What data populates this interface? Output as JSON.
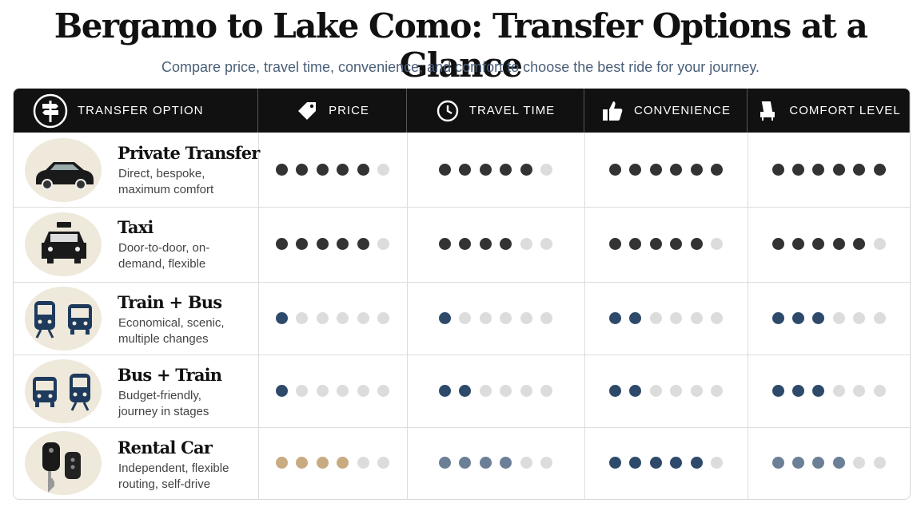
{
  "header": {
    "title": "Bergamo to Lake Como: Transfer Options at a Glance",
    "subtitle": "Compare price, travel time, convenience, and comfort to choose the best ride for your journey."
  },
  "table": {
    "columns": [
      "TRANSFER OPTION",
      "PRICE",
      "TRAVEL TIME",
      "CONVENIENCE",
      "COMFORT LEVEL"
    ],
    "scale": 6,
    "empty_color": "#dcdcdc",
    "rows": [
      {
        "name": "Private Transfer",
        "description": "Direct, bespoke, maximum comfort",
        "ratings": [
          5,
          5,
          6,
          6
        ],
        "colors": [
          "#333333",
          "#333333",
          "#333333",
          "#333333"
        ]
      },
      {
        "name": "Taxi",
        "description": "Door-to-door, on-demand, flexible",
        "ratings": [
          5,
          4,
          5,
          5
        ],
        "colors": [
          "#333333",
          "#333333",
          "#333333",
          "#333333"
        ]
      },
      {
        "name": "Train + Bus",
        "description": "Economical, scenic, multiple changes",
        "ratings": [
          1,
          1,
          2,
          3
        ],
        "colors": [
          "#2e4a6b",
          "#2e4a6b",
          "#2e4a6b",
          "#2e4a6b"
        ]
      },
      {
        "name": "Bus + Train",
        "description": "Budget-friendly, journey in stages",
        "ratings": [
          1,
          2,
          2,
          3
        ],
        "colors": [
          "#2e4a6b",
          "#2e4a6b",
          "#2e4a6b",
          "#2e4a6b"
        ]
      },
      {
        "name": "Rental Car",
        "description": "Independent, flexible routing, self-drive",
        "ratings": [
          4,
          4,
          5,
          4
        ],
        "colors": [
          "#c9ab82",
          "#6b7f96",
          "#2e4a6b",
          "#6b7f96"
        ]
      }
    ]
  }
}
